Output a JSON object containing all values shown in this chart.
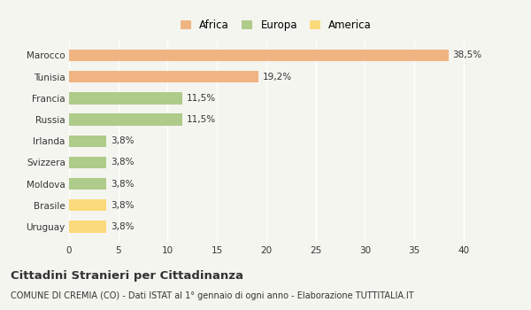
{
  "categories": [
    "Uruguay",
    "Brasile",
    "Moldova",
    "Svizzera",
    "Irlanda",
    "Russia",
    "Francia",
    "Tunisia",
    "Marocco"
  ],
  "values": [
    3.8,
    3.8,
    3.8,
    3.8,
    3.8,
    11.5,
    11.5,
    19.2,
    38.5
  ],
  "colors": [
    "#FADA7A",
    "#FADA7A",
    "#AECB8A",
    "#AECB8A",
    "#AECB8A",
    "#AECB8A",
    "#AECB8A",
    "#F0B482",
    "#F0B482"
  ],
  "labels": [
    "3,8%",
    "3,8%",
    "3,8%",
    "3,8%",
    "3,8%",
    "11,5%",
    "11,5%",
    "19,2%",
    "38,5%"
  ],
  "legend": [
    {
      "label": "Africa",
      "color": "#F0B482"
    },
    {
      "label": "Europa",
      "color": "#AECB8A"
    },
    {
      "label": "America",
      "color": "#FADA7A"
    }
  ],
  "xlim": [
    0,
    42
  ],
  "xticks": [
    0,
    5,
    10,
    15,
    20,
    25,
    30,
    35,
    40
  ],
  "title": "Cittadini Stranieri per Cittadinanza",
  "subtitle": "COMUNE DI CREMIA (CO) - Dati ISTAT al 1° gennaio di ogni anno - Elaborazione TUTTITALIA.IT",
  "background_color": "#F5F5F0",
  "bar_height": 0.55,
  "grid_color": "#FFFFFF",
  "text_color": "#333333"
}
